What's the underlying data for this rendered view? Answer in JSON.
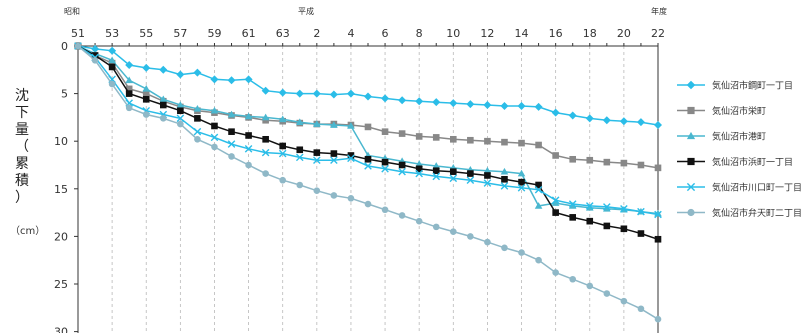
{
  "chart_data": {
    "type": "line",
    "era_labels": {
      "showa": "昭和",
      "heisei": "平成",
      "year_unit": "年度"
    },
    "x_ticks": [
      "51",
      "53",
      "55",
      "57",
      "59",
      "61",
      "63",
      "2",
      "4",
      "6",
      "8",
      "10",
      "12",
      "14",
      "16",
      "18",
      "20",
      "22"
    ],
    "y_ticks": [
      "0",
      "5",
      "10",
      "15",
      "20",
      "25",
      "30"
    ],
    "ylabel_chars": [
      "沈",
      "下",
      "量",
      "（",
      "累",
      "積",
      "）"
    ],
    "unit": "（cm）",
    "ylim": [
      0,
      30
    ],
    "y_reversed": true,
    "grid": "vertical dashed",
    "legend_position": "right",
    "x": [
      "51",
      "52",
      "53",
      "54",
      "55",
      "56",
      "57",
      "58",
      "59",
      "60",
      "61",
      "62",
      "63",
      "元",
      "2",
      "3",
      "4",
      "5",
      "6",
      "7",
      "8",
      "9",
      "10",
      "11",
      "12",
      "13",
      "14",
      "15",
      "16",
      "17",
      "18",
      "19",
      "20",
      "21",
      "22"
    ],
    "series": [
      {
        "name": "気仙沼市鋼町一丁目",
        "color": "#2bbde8",
        "marker": "diamond",
        "values": [
          0,
          0.3,
          0.5,
          2.0,
          2.3,
          2.5,
          3.0,
          2.8,
          3.5,
          3.6,
          3.5,
          4.7,
          4.9,
          5.0,
          5.0,
          5.1,
          5.0,
          5.3,
          5.5,
          5.7,
          5.8,
          5.9,
          6.0,
          6.1,
          6.2,
          6.3,
          6.3,
          6.4,
          7.0,
          7.3,
          7.6,
          7.8,
          7.9,
          8.0,
          8.3
        ]
      },
      {
        "name": "気仙沼市栄町",
        "color": "#888888",
        "marker": "square",
        "values": [
          0,
          1.0,
          1.8,
          4.5,
          5.0,
          5.8,
          6.4,
          6.8,
          7.0,
          7.3,
          7.5,
          7.8,
          7.9,
          8.1,
          8.2,
          8.2,
          8.3,
          8.5,
          9.0,
          9.2,
          9.5,
          9.6,
          9.8,
          9.9,
          10.0,
          10.1,
          10.2,
          10.4,
          11.5,
          11.9,
          12.0,
          12.2,
          12.3,
          12.5,
          12.8
        ]
      },
      {
        "name": "気仙沼市港町",
        "color": "#4ab7cf",
        "marker": "triangle",
        "values": [
          0,
          0.8,
          1.5,
          3.6,
          4.5,
          5.6,
          6.2,
          6.6,
          6.8,
          7.2,
          7.4,
          7.5,
          7.7,
          8.0,
          8.2,
          8.3,
          8.4,
          11.5,
          11.8,
          12.1,
          12.4,
          12.6,
          12.8,
          13.0,
          13.1,
          13.2,
          13.4,
          16.8,
          16.5,
          16.8,
          17.0,
          17.1,
          17.2,
          17.4,
          17.6
        ]
      },
      {
        "name": "気仙沼市浜町一丁目",
        "color": "#111111",
        "marker": "square",
        "values": [
          0,
          1.0,
          2.2,
          5.0,
          5.6,
          6.2,
          6.8,
          7.6,
          8.4,
          9.0,
          9.4,
          9.8,
          10.5,
          10.9,
          11.2,
          11.3,
          11.5,
          11.9,
          12.2,
          12.5,
          12.9,
          13.1,
          13.2,
          13.4,
          13.6,
          14.0,
          14.3,
          14.6,
          17.5,
          18.0,
          18.4,
          18.9,
          19.2,
          19.7,
          20.3
        ]
      },
      {
        "name": "気仙沼市川口町一丁目",
        "color": "#2bbde8",
        "marker": "x",
        "values": [
          0,
          1.2,
          3.5,
          6.0,
          6.8,
          7.2,
          7.6,
          9.0,
          9.6,
          10.3,
          10.8,
          11.2,
          11.3,
          11.7,
          12.0,
          12.0,
          11.8,
          12.6,
          12.9,
          13.2,
          13.4,
          13.7,
          13.9,
          14.1,
          14.4,
          14.7,
          14.9,
          15.1,
          16.2,
          16.6,
          16.8,
          16.9,
          17.1,
          17.4,
          17.7
        ]
      },
      {
        "name": "気仙沼市弁天町二丁目",
        "color": "#8fb8c7",
        "marker": "circle",
        "values": [
          0,
          1.5,
          4.0,
          6.5,
          7.2,
          7.6,
          8.2,
          9.8,
          10.6,
          11.6,
          12.5,
          13.4,
          14.1,
          14.6,
          15.2,
          15.7,
          16.0,
          16.6,
          17.2,
          17.8,
          18.4,
          19.0,
          19.5,
          20.0,
          20.6,
          21.2,
          21.7,
          22.5,
          23.8,
          24.5,
          25.2,
          26.0,
          26.8,
          27.6,
          28.7
        ]
      }
    ]
  }
}
